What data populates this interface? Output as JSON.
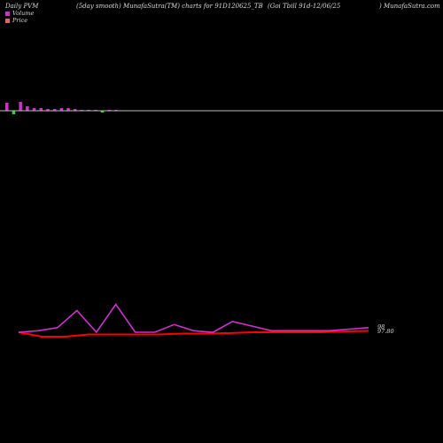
{
  "header": {
    "left": "Daily PVM",
    "mid": "(5day smooth) MunafaSutra(TM) charts for 91D120625_TB",
    "right": "(Goi  Tbill 91d-12/06/25",
    "site": ") MunafaSutra.com"
  },
  "legend": {
    "volume_label": "Volume",
    "price_label": "Price",
    "volume_color": "#cc33cc",
    "price_color": "#e06666"
  },
  "colors": {
    "background": "#000000",
    "volume_up": "#cc33cc",
    "volume_down": "#33cc33",
    "baseline": "#bbbbbb",
    "pvm_line": "#cc33cc",
    "price_line": "#ff0000"
  },
  "chart_data": {
    "type": "line",
    "title": "Daily PVM",
    "volume_bars": [
      {
        "value": 9,
        "dir": "up"
      },
      {
        "value": 4,
        "dir": "down"
      },
      {
        "value": 10,
        "dir": "up"
      },
      {
        "value": 5,
        "dir": "up"
      },
      {
        "value": 3,
        "dir": "up"
      },
      {
        "value": 3,
        "dir": "up"
      },
      {
        "value": 2,
        "dir": "up"
      },
      {
        "value": 2,
        "dir": "up"
      },
      {
        "value": 3,
        "dir": "up"
      },
      {
        "value": 3,
        "dir": "up"
      },
      {
        "value": 2,
        "dir": "up"
      },
      {
        "value": 1,
        "dir": "up"
      },
      {
        "value": 1,
        "dir": "up"
      },
      {
        "value": 1,
        "dir": "up"
      },
      {
        "value": 2,
        "dir": "down"
      },
      {
        "value": 1,
        "dir": "up"
      },
      {
        "value": 1,
        "dir": "up"
      }
    ],
    "pvm_series": [
      0,
      0.5,
      1.5,
      7,
      0,
      9,
      0,
      0,
      2.5,
      0.5,
      0,
      3.5,
      2,
      0.5,
      0.5,
      0.5,
      0.5,
      1,
      1.5
    ],
    "price_series": [
      0,
      -1,
      -1,
      -0.5,
      -0.5,
      -0.5,
      -0.5,
      -0.3,
      -0.3,
      -0.2,
      0,
      0,
      0,
      0,
      0.2,
      0.3
    ],
    "price_label": "98",
    "pvm_label": "97.80"
  }
}
